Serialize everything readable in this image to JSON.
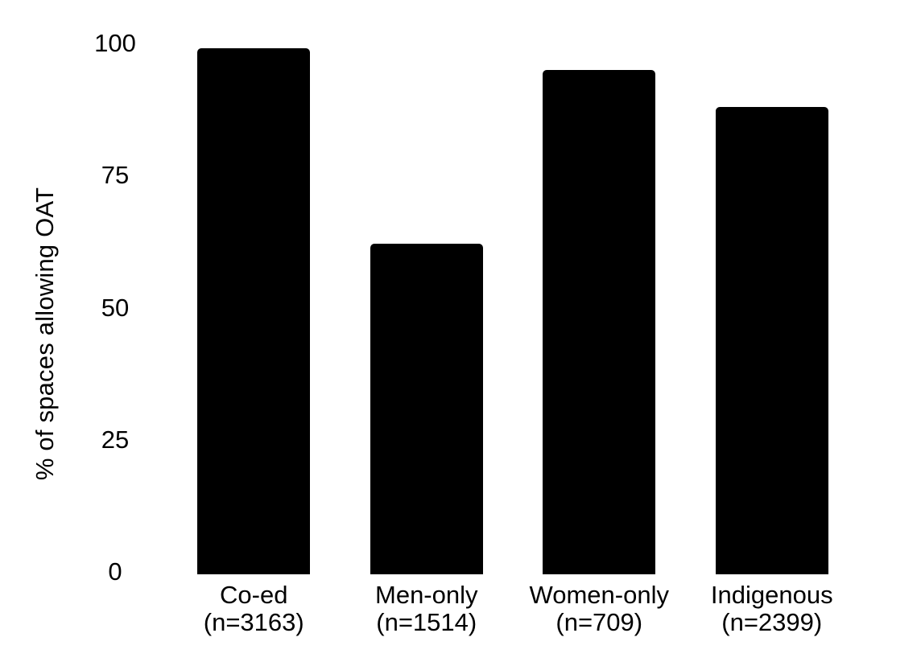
{
  "figure": {
    "background": "#ffffff",
    "text_color": "#000000"
  },
  "chart_data": {
    "type": "bar",
    "title": "",
    "xlabel": "",
    "ylabel": "% of spaces allowing OAT",
    "categories": [
      [
        "Co-ed (n=3163)"
      ],
      [
        "Men-only",
        "(n=1514)"
      ],
      [
        "Women-only",
        "(n=709)"
      ],
      [
        "Indigenous",
        "(n=2399)"
      ]
    ],
    "values": [
      99.5,
      62.5,
      95.5,
      88.5
    ],
    "ylim": [
      0,
      100
    ],
    "yticks": [
      100,
      75,
      50,
      25,
      0
    ],
    "grid": false,
    "axis_lines": false,
    "legend_position": "none",
    "bar_color": "#000000"
  }
}
